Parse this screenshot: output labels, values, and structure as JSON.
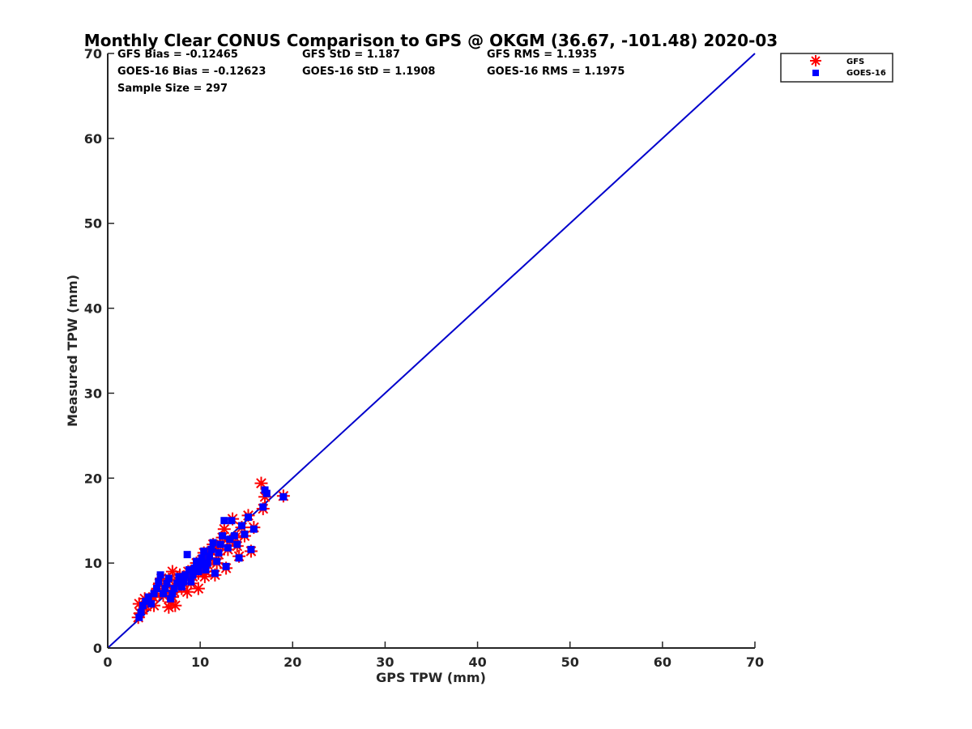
{
  "chart_data": {
    "type": "scatter",
    "title": "Monthly Clear CONUS Comparison to GPS @ OKGM (36.67, -101.48) 2020-03",
    "xlabel": "GPS TPW (mm)",
    "ylabel": "Measured TPW (mm)",
    "xlim": [
      0,
      70
    ],
    "ylim": [
      0,
      70
    ],
    "xticks": [
      "0",
      "10",
      "20",
      "30",
      "40",
      "50",
      "60",
      "70"
    ],
    "yticks": [
      "0",
      "10",
      "20",
      "30",
      "40",
      "50",
      "60",
      "70"
    ],
    "grid": false,
    "legend_position": "outside-top-right",
    "stats": {
      "gfs_bias": "GFS Bias = -0.12465",
      "gfs_std": "GFS StD = 1.187",
      "gfs_rms": "GFS RMS = 1.1935",
      "goes_bias": "GOES-16 Bias = -0.12623",
      "goes_std": "GOES-16 StD = 1.1908",
      "goes_rms": "GOES-16 RMS = 1.1975",
      "sample": "Sample Size = 297"
    },
    "reference_line": {
      "x": [
        0,
        70
      ],
      "y": [
        0,
        70
      ],
      "color": "#0000cc"
    },
    "series": [
      {
        "name": "GFS",
        "marker": "asterisk",
        "color": "#ff0000",
        "points": [
          [
            3.3,
            3.6
          ],
          [
            3.5,
            4.1
          ],
          [
            3.8,
            4.5
          ],
          [
            3.4,
            5.2
          ],
          [
            4.2,
            4.9
          ],
          [
            4.6,
            5.6
          ],
          [
            4.9,
            6.0
          ],
          [
            5.2,
            6.4
          ],
          [
            5.4,
            7.0
          ],
          [
            5.6,
            7.6
          ],
          [
            5.8,
            8.2
          ],
          [
            6.0,
            6.2
          ],
          [
            6.2,
            6.8
          ],
          [
            6.4,
            7.4
          ],
          [
            6.6,
            8.1
          ],
          [
            6.8,
            5.4
          ],
          [
            7.0,
            6.0
          ],
          [
            7.2,
            6.6
          ],
          [
            7.4,
            7.2
          ],
          [
            7.6,
            7.9
          ],
          [
            7.0,
            9.0
          ],
          [
            7.8,
            8.6
          ],
          [
            8.0,
            7.0
          ],
          [
            8.2,
            7.6
          ],
          [
            8.5,
            8.3
          ],
          [
            8.7,
            9.0
          ],
          [
            9.0,
            7.6
          ],
          [
            9.2,
            8.4
          ],
          [
            9.4,
            9.2
          ],
          [
            9.6,
            10.0
          ],
          [
            9.8,
            8.8
          ],
          [
            10.0,
            9.6
          ],
          [
            10.2,
            10.4
          ],
          [
            10.4,
            11.2
          ],
          [
            10.6,
            9.0
          ],
          [
            10.8,
            9.8
          ],
          [
            11.0,
            10.6
          ],
          [
            11.2,
            11.4
          ],
          [
            11.4,
            12.2
          ],
          [
            11.6,
            8.6
          ],
          [
            11.8,
            10.0
          ],
          [
            12.0,
            11.0
          ],
          [
            12.2,
            12.0
          ],
          [
            12.4,
            13.0
          ],
          [
            12.6,
            14.0
          ],
          [
            12.8,
            9.4
          ],
          [
            13.0,
            11.6
          ],
          [
            13.2,
            12.6
          ],
          [
            13.5,
            15.2
          ],
          [
            13.8,
            13.0
          ],
          [
            14.0,
            12.0
          ],
          [
            14.2,
            10.8
          ],
          [
            14.5,
            14.2
          ],
          [
            14.8,
            13.2
          ],
          [
            15.2,
            15.6
          ],
          [
            15.5,
            11.4
          ],
          [
            15.8,
            14.2
          ],
          [
            16.6,
            19.4
          ],
          [
            16.8,
            16.4
          ],
          [
            17.0,
            17.8
          ],
          [
            19.0,
            17.9
          ],
          [
            4.0,
            5.8
          ],
          [
            5.0,
            5.0
          ],
          [
            6.6,
            4.8
          ],
          [
            7.3,
            5.0
          ],
          [
            8.6,
            6.6
          ],
          [
            9.8,
            7.0
          ],
          [
            10.5,
            8.4
          ]
        ]
      },
      {
        "name": "GOES-16",
        "marker": "square",
        "color": "#0000ff",
        "points": [
          [
            3.4,
            3.6
          ],
          [
            3.6,
            4.2
          ],
          [
            3.8,
            5.0
          ],
          [
            4.1,
            5.5
          ],
          [
            4.4,
            6.0
          ],
          [
            4.7,
            5.2
          ],
          [
            5.0,
            6.4
          ],
          [
            5.3,
            7.0
          ],
          [
            5.5,
            7.8
          ],
          [
            5.7,
            8.6
          ],
          [
            6.0,
            6.4
          ],
          [
            6.2,
            7.0
          ],
          [
            6.4,
            7.6
          ],
          [
            6.6,
            8.2
          ],
          [
            6.8,
            5.8
          ],
          [
            7.0,
            6.4
          ],
          [
            7.2,
            7.0
          ],
          [
            7.5,
            7.6
          ],
          [
            7.7,
            8.4
          ],
          [
            8.0,
            7.2
          ],
          [
            8.2,
            7.8
          ],
          [
            8.4,
            8.6
          ],
          [
            8.6,
            11.0
          ],
          [
            8.8,
            9.2
          ],
          [
            9.0,
            7.8
          ],
          [
            9.2,
            8.6
          ],
          [
            9.4,
            9.4
          ],
          [
            9.6,
            10.2
          ],
          [
            9.8,
            9.0
          ],
          [
            10.0,
            9.8
          ],
          [
            10.2,
            10.6
          ],
          [
            10.4,
            11.4
          ],
          [
            10.6,
            9.2
          ],
          [
            10.8,
            10.0
          ],
          [
            11.0,
            10.8
          ],
          [
            11.2,
            11.6
          ],
          [
            11.4,
            12.4
          ],
          [
            11.6,
            8.8
          ],
          [
            11.8,
            10.2
          ],
          [
            12.0,
            11.2
          ],
          [
            12.2,
            12.2
          ],
          [
            12.4,
            13.2
          ],
          [
            12.6,
            15.0
          ],
          [
            12.8,
            9.6
          ],
          [
            13.0,
            11.8
          ],
          [
            13.2,
            12.8
          ],
          [
            13.4,
            15.0
          ],
          [
            13.7,
            13.2
          ],
          [
            14.0,
            12.2
          ],
          [
            14.2,
            10.6
          ],
          [
            14.5,
            14.4
          ],
          [
            14.8,
            13.4
          ],
          [
            15.2,
            15.4
          ],
          [
            15.5,
            11.6
          ],
          [
            15.8,
            14.0
          ],
          [
            16.8,
            16.6
          ],
          [
            17.0,
            18.6
          ],
          [
            17.2,
            18.2
          ],
          [
            19.0,
            17.8
          ],
          [
            9.9,
            10.2
          ],
          [
            10.3,
            10.0
          ]
        ]
      }
    ]
  }
}
